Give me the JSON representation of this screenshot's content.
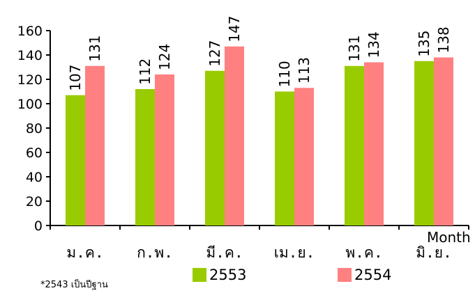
{
  "chart_data": {
    "type": "bar",
    "title": "",
    "xlabel": "Month",
    "ylabel": "",
    "ylim": [
      0,
      160
    ],
    "yticks": [
      0,
      20,
      40,
      60,
      80,
      100,
      120,
      140,
      160
    ],
    "grid": false,
    "legend_position": "bottom",
    "categories": [
      "ม.ค.",
      "ก.พ.",
      "มี.ค.",
      "เม.ย.",
      "พ.ค.",
      "มิ.ย."
    ],
    "series": [
      {
        "name": "2553",
        "color": "#99cc00",
        "values": [
          107,
          112,
          127,
          110,
          131,
          135
        ]
      },
      {
        "name": "2554",
        "color": "#ff8080",
        "values": [
          131,
          124,
          147,
          113,
          134,
          138
        ]
      }
    ]
  },
  "footnote": "*2543 เป็นปีฐาน"
}
